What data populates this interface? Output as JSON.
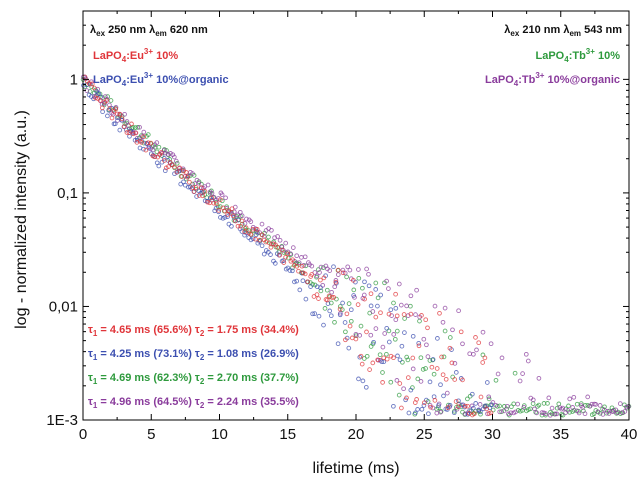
{
  "chart_data": {
    "type": "scatter",
    "xlabel": "lifetime (ms)",
    "ylabel": "log - normalized intensity (a.u.)",
    "xlim": [
      0,
      40
    ],
    "ylim": [
      0.001,
      4
    ],
    "yscale": "log",
    "grid": false,
    "x_ticks": [
      "0",
      "5",
      "10",
      "15",
      "20",
      "25",
      "30",
      "35",
      "40"
    ],
    "y_ticks": [
      {
        "value": 1,
        "label": "1"
      },
      {
        "value": 0.1,
        "label": "0,1"
      },
      {
        "value": 0.01,
        "label": "0,01"
      },
      {
        "value": 0.001,
        "label": "1E-3"
      }
    ],
    "excitation_left": {
      "ex": "250 nm",
      "em": "620 nm"
    },
    "excitation_right": {
      "ex": "210 nm",
      "em": "543 nm"
    },
    "series": [
      {
        "name": "LaPO4:Eu3+ 10%",
        "base": "LaPO",
        "sub": "4",
        "mid": ":Eu",
        "sup": "3+",
        "tail": " 10%",
        "color": "#e0353a",
        "legend_side": "left",
        "x_end": 30,
        "tau1": 4.65,
        "a1": 0.656,
        "tau2": 1.75,
        "a2": 0.344,
        "tau_line": {
          "t1": "4.65 ms (65.6%)",
          "t2": "1.75 ms (34.4%)"
        }
      },
      {
        "name": "LaPO4:Eu3+ 10%@organic",
        "base": "LaPO",
        "sub": "4",
        "mid": ":Eu",
        "sup": "3+",
        "tail": " 10%@organic",
        "color": "#3c4fb0",
        "legend_side": "left",
        "x_end": 30,
        "tau1": 4.25,
        "a1": 0.731,
        "tau2": 1.08,
        "a2": 0.269,
        "tau_line": {
          "t1": "4.25 ms (73.1%)",
          "t2": "1.08 ms (26.9%)"
        }
      },
      {
        "name": "LaPO4:Tb3+ 10%",
        "base": "LaPO",
        "sub": "4",
        "mid": ":Tb",
        "sup": "3+",
        "tail": " 10%",
        "color": "#2e9a3d",
        "legend_side": "right",
        "x_end": 40,
        "tau1": 4.69,
        "a1": 0.623,
        "tau2": 2.7,
        "a2": 0.377,
        "tau_line": {
          "t1": "4.69 ms (62.3%)",
          "t2": "2.70 ms (37.7%)"
        }
      },
      {
        "name": "LaPO4:Tb3+ 10%@organic",
        "base": "LaPO",
        "sub": "4",
        "mid": ":Tb",
        "sup": "3+",
        "tail": " 10%@organic",
        "color": "#8a3c9c",
        "legend_side": "right",
        "x_end": 40,
        "tau1": 4.96,
        "a1": 0.645,
        "tau2": 2.24,
        "a2": 0.355,
        "tau_line": {
          "t1": "4.96 ms (64.5%)",
          "t2": "2.24 ms (35.5%)"
        }
      }
    ]
  }
}
